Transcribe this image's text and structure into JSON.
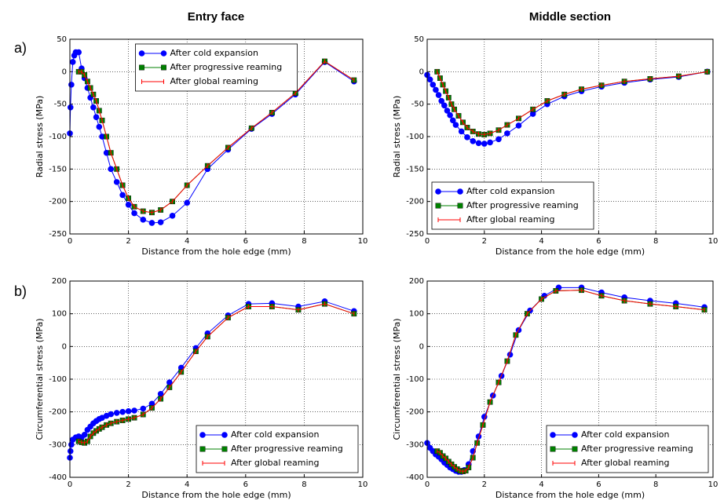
{
  "column_titles": [
    "Entry face",
    "Middle section"
  ],
  "row_labels": [
    "a)",
    "b)"
  ],
  "chart_data": [
    {
      "type": "line",
      "xlabel": "Distance from the hole edge (mm)",
      "ylabel": "Radial stress (MPa)",
      "xlim": [
        0,
        10
      ],
      "xticks": [
        0,
        2,
        4,
        6,
        8,
        10
      ],
      "ylim": [
        -250,
        50
      ],
      "yticks": [
        -250,
        -200,
        -150,
        -100,
        -50,
        0,
        50
      ],
      "grid": true,
      "legend": "upper center",
      "series": [
        {
          "name": "After cold expansion",
          "color": "#0000ff",
          "marker": "circle",
          "x": [
            0,
            0.02,
            0.05,
            0.1,
            0.15,
            0.2,
            0.3,
            0.4,
            0.5,
            0.6,
            0.7,
            0.8,
            0.9,
            1.0,
            1.1,
            1.25,
            1.4,
            1.6,
            1.8,
            2.0,
            2.2,
            2.5,
            2.8,
            3.1,
            3.5,
            4.0,
            4.7,
            5.4,
            6.2,
            6.9,
            7.7,
            8.7,
            9.7
          ],
          "values": [
            -95,
            -55,
            -20,
            15,
            25,
            30,
            30,
            5,
            -10,
            -25,
            -40,
            -55,
            -70,
            -85,
            -100,
            -125,
            -150,
            -170,
            -190,
            -205,
            -218,
            -228,
            -233,
            -232,
            -222,
            -202,
            -150,
            -120,
            -88,
            -65,
            -35,
            15,
            -15
          ]
        },
        {
          "name": "After progressive reaming",
          "color": "#008000",
          "marker": "square",
          "x": [
            0.3,
            0.4,
            0.5,
            0.6,
            0.7,
            0.8,
            0.9,
            1.0,
            1.1,
            1.25,
            1.4,
            1.6,
            1.8,
            2.0,
            2.2,
            2.5,
            2.8,
            3.1,
            3.5,
            4.0,
            4.7,
            5.4,
            6.2,
            6.9,
            7.7,
            8.7,
            9.7
          ],
          "values": [
            0,
            0,
            -5,
            -15,
            -25,
            -35,
            -45,
            -60,
            -75,
            -100,
            -125,
            -150,
            -175,
            -195,
            -208,
            -215,
            -217,
            -213,
            -200,
            -175,
            -145,
            -117,
            -87,
            -63,
            -33,
            16,
            -13
          ]
        },
        {
          "name": "After global reaming",
          "color": "#ff0000",
          "marker": "tick",
          "x": [
            0.3,
            0.4,
            0.5,
            0.6,
            0.7,
            0.8,
            0.9,
            1.0,
            1.1,
            1.25,
            1.4,
            1.6,
            1.8,
            2.0,
            2.2,
            2.5,
            2.8,
            3.1,
            3.5,
            4.0,
            4.7,
            5.4,
            6.2,
            6.9,
            7.7,
            8.7,
            9.7
          ],
          "values": [
            0,
            0,
            -5,
            -15,
            -25,
            -35,
            -45,
            -60,
            -75,
            -100,
            -125,
            -150,
            -175,
            -195,
            -208,
            -215,
            -217,
            -213,
            -200,
            -175,
            -145,
            -117,
            -87,
            -63,
            -33,
            16,
            -13
          ]
        }
      ]
    },
    {
      "type": "line",
      "xlabel": "Distance from the hole edge (mm)",
      "ylabel": "Radial stress (MPa)",
      "xlim": [
        0,
        10
      ],
      "xticks": [
        0,
        2,
        4,
        6,
        8,
        10
      ],
      "ylim": [
        -250,
        50
      ],
      "yticks": [
        -250,
        -200,
        -150,
        -100,
        -50,
        0,
        50
      ],
      "grid": true,
      "legend": "lower left",
      "series": [
        {
          "name": "After cold expansion",
          "color": "#0000ff",
          "marker": "circle",
          "x": [
            0,
            0.1,
            0.2,
            0.3,
            0.4,
            0.5,
            0.6,
            0.7,
            0.8,
            0.9,
            1.0,
            1.2,
            1.4,
            1.6,
            1.8,
            2.0,
            2.2,
            2.5,
            2.8,
            3.2,
            3.7,
            4.2,
            4.8,
            5.4,
            6.1,
            6.9,
            7.8,
            8.8,
            9.8
          ],
          "values": [
            -5,
            -12,
            -20,
            -28,
            -36,
            -45,
            -52,
            -60,
            -67,
            -75,
            -82,
            -92,
            -101,
            -107,
            -110,
            -111,
            -109,
            -104,
            -95,
            -83,
            -65,
            -50,
            -38,
            -30,
            -23,
            -17,
            -12,
            -8,
            0
          ]
        },
        {
          "name": "After progressive reaming",
          "color": "#008000",
          "marker": "square",
          "x": [
            0.35,
            0.45,
            0.55,
            0.65,
            0.75,
            0.85,
            0.95,
            1.1,
            1.25,
            1.4,
            1.6,
            1.8,
            2.0,
            2.2,
            2.5,
            2.8,
            3.2,
            3.7,
            4.2,
            4.8,
            5.4,
            6.1,
            6.9,
            7.8,
            8.8,
            9.8
          ],
          "values": [
            0,
            -10,
            -20,
            -30,
            -40,
            -50,
            -58,
            -68,
            -78,
            -86,
            -92,
            -96,
            -97,
            -95,
            -90,
            -82,
            -72,
            -58,
            -45,
            -35,
            -27,
            -21,
            -15,
            -11,
            -7,
            0
          ]
        },
        {
          "name": "After global reaming",
          "color": "#ff0000",
          "marker": "tick",
          "x": [
            0.35,
            0.45,
            0.55,
            0.65,
            0.75,
            0.85,
            0.95,
            1.1,
            1.25,
            1.4,
            1.6,
            1.8,
            2.0,
            2.2,
            2.5,
            2.8,
            3.2,
            3.7,
            4.2,
            4.8,
            5.4,
            6.1,
            6.9,
            7.8,
            8.8,
            9.8
          ],
          "values": [
            0,
            -10,
            -20,
            -30,
            -40,
            -50,
            -58,
            -68,
            -78,
            -86,
            -92,
            -96,
            -97,
            -95,
            -90,
            -82,
            -72,
            -58,
            -45,
            -35,
            -27,
            -21,
            -15,
            -11,
            -7,
            0
          ]
        }
      ]
    },
    {
      "type": "line",
      "xlabel": "Distance from the hole edge (mm)",
      "ylabel": "Circumferential stress (MPa)",
      "xlim": [
        0,
        10
      ],
      "xticks": [
        0,
        2,
        4,
        6,
        8,
        10
      ],
      "ylim": [
        -400,
        200
      ],
      "yticks": [
        -400,
        -300,
        -200,
        -100,
        0,
        100,
        200
      ],
      "grid": true,
      "legend": "lower right",
      "series": [
        {
          "name": "After cold expansion",
          "color": "#0000ff",
          "marker": "circle",
          "x": [
            0,
            0.02,
            0.05,
            0.1,
            0.2,
            0.3,
            0.4,
            0.5,
            0.6,
            0.7,
            0.8,
            0.9,
            1.0,
            1.1,
            1.25,
            1.4,
            1.6,
            1.8,
            2.0,
            2.2,
            2.5,
            2.8,
            3.1,
            3.4,
            3.8,
            4.3,
            4.7,
            5.4,
            6.1,
            6.9,
            7.8,
            8.7,
            9.7
          ],
          "values": [
            -340,
            -320,
            -300,
            -285,
            -278,
            -275,
            -278,
            -270,
            -255,
            -245,
            -235,
            -228,
            -222,
            -218,
            -212,
            -207,
            -203,
            -200,
            -198,
            -196,
            -190,
            -175,
            -145,
            -110,
            -65,
            -5,
            40,
            95,
            130,
            132,
            122,
            138,
            108
          ]
        },
        {
          "name": "After progressive reaming",
          "color": "#008000",
          "marker": "square",
          "x": [
            0.3,
            0.4,
            0.5,
            0.6,
            0.7,
            0.8,
            0.9,
            1.0,
            1.1,
            1.25,
            1.4,
            1.6,
            1.8,
            2.0,
            2.2,
            2.5,
            2.8,
            3.1,
            3.4,
            3.8,
            4.3,
            4.7,
            5.4,
            6.1,
            6.9,
            7.8,
            8.7,
            9.7
          ],
          "values": [
            -290,
            -293,
            -295,
            -290,
            -275,
            -265,
            -258,
            -252,
            -247,
            -240,
            -235,
            -230,
            -226,
            -222,
            -218,
            -208,
            -188,
            -160,
            -125,
            -78,
            -15,
            30,
            88,
            122,
            122,
            112,
            130,
            100
          ]
        },
        {
          "name": "After global reaming",
          "color": "#ff0000",
          "marker": "tick",
          "x": [
            0.3,
            0.4,
            0.5,
            0.6,
            0.7,
            0.8,
            0.9,
            1.0,
            1.1,
            1.25,
            1.4,
            1.6,
            1.8,
            2.0,
            2.2,
            2.5,
            2.8,
            3.1,
            3.4,
            3.8,
            4.3,
            4.7,
            5.4,
            6.1,
            6.9,
            7.8,
            8.7,
            9.7
          ],
          "values": [
            -290,
            -293,
            -295,
            -290,
            -275,
            -265,
            -258,
            -252,
            -247,
            -240,
            -235,
            -230,
            -226,
            -222,
            -218,
            -208,
            -188,
            -160,
            -125,
            -78,
            -15,
            30,
            88,
            122,
            122,
            112,
            130,
            100
          ]
        }
      ]
    },
    {
      "type": "line",
      "xlabel": "Distance from the hole edge (mm)",
      "ylabel": "Circumferential stress (MPa)",
      "xlim": [
        0,
        10
      ],
      "xticks": [
        0,
        2,
        4,
        6,
        8,
        10
      ],
      "ylim": [
        -400,
        200
      ],
      "yticks": [
        -400,
        -300,
        -200,
        -100,
        0,
        100,
        200
      ],
      "grid": true,
      "legend": "lower right",
      "series": [
        {
          "name": "After cold expansion",
          "color": "#0000ff",
          "marker": "circle",
          "x": [
            0,
            0.1,
            0.2,
            0.3,
            0.4,
            0.5,
            0.6,
            0.7,
            0.8,
            0.9,
            1.0,
            1.1,
            1.2,
            1.3,
            1.45,
            1.6,
            1.8,
            2.0,
            2.3,
            2.6,
            2.9,
            3.2,
            3.6,
            4.1,
            4.6,
            5.4,
            6.1,
            6.9,
            7.8,
            8.7,
            9.7
          ],
          "values": [
            -295,
            -310,
            -320,
            -330,
            -337,
            -345,
            -355,
            -362,
            -370,
            -375,
            -380,
            -383,
            -383,
            -378,
            -360,
            -320,
            -275,
            -215,
            -150,
            -90,
            -25,
            50,
            110,
            155,
            180,
            180,
            165,
            150,
            140,
            132,
            120
          ]
        },
        {
          "name": "After progressive reaming",
          "color": "#008000",
          "marker": "square",
          "x": [
            0.35,
            0.45,
            0.55,
            0.65,
            0.75,
            0.85,
            0.95,
            1.05,
            1.15,
            1.25,
            1.35,
            1.45,
            1.6,
            1.75,
            1.95,
            2.2,
            2.5,
            2.8,
            3.1,
            3.5,
            4.0,
            4.5,
            5.4,
            6.1,
            6.9,
            7.8,
            8.7,
            9.7
          ],
          "values": [
            -320,
            -325,
            -335,
            -342,
            -352,
            -360,
            -368,
            -375,
            -380,
            -382,
            -380,
            -370,
            -340,
            -295,
            -240,
            -170,
            -110,
            -45,
            35,
            100,
            145,
            170,
            172,
            155,
            140,
            130,
            122,
            112
          ]
        },
        {
          "name": "After global reaming",
          "color": "#ff0000",
          "marker": "tick",
          "x": [
            0.35,
            0.45,
            0.55,
            0.65,
            0.75,
            0.85,
            0.95,
            1.05,
            1.15,
            1.25,
            1.35,
            1.45,
            1.6,
            1.75,
            1.95,
            2.2,
            2.5,
            2.8,
            3.1,
            3.5,
            4.0,
            4.5,
            5.4,
            6.1,
            6.9,
            7.8,
            8.7,
            9.7
          ],
          "values": [
            -320,
            -325,
            -335,
            -342,
            -352,
            -360,
            -368,
            -375,
            -380,
            -382,
            -380,
            -370,
            -340,
            -295,
            -240,
            -170,
            -110,
            -45,
            35,
            100,
            145,
            170,
            172,
            155,
            140,
            130,
            122,
            112
          ]
        }
      ]
    }
  ]
}
